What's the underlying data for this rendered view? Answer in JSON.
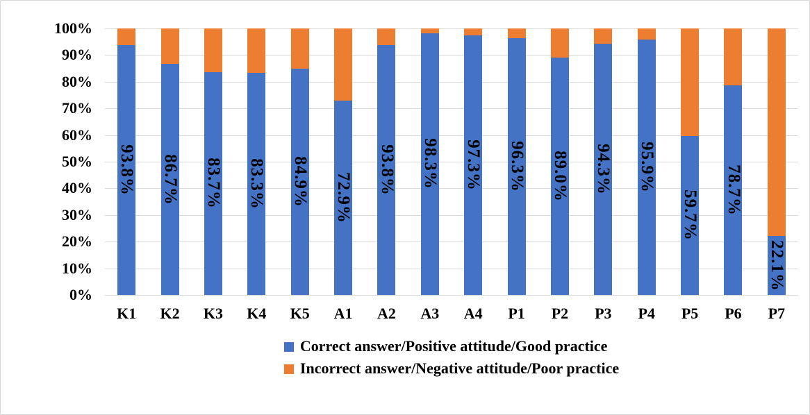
{
  "chart_data": {
    "type": "bar",
    "subtype": "100-percent-stacked-column",
    "categories": [
      "K1",
      "K2",
      "K3",
      "K4",
      "K5",
      "A1",
      "A2",
      "A3",
      "A4",
      "P1",
      "P2",
      "P3",
      "P4",
      "P5",
      "P6",
      "P7"
    ],
    "series": [
      {
        "name": "Correct answer/Positive attitude/Good practice",
        "color": "#4472C4",
        "values": [
          93.8,
          86.7,
          83.7,
          83.3,
          84.9,
          72.9,
          93.8,
          98.3,
          97.3,
          96.3,
          89.0,
          94.3,
          95.9,
          59.7,
          78.7,
          22.1
        ],
        "data_labels": [
          "93.8%",
          "86.7%",
          "83.7%",
          "83.3%",
          "84.9%",
          "72.9%",
          "93.8%",
          "98.3%",
          "97.3%",
          "96.3%",
          "89.0%",
          "94.3%",
          "95.9%",
          "59.7%",
          "78.7%",
          "22.1%"
        ]
      },
      {
        "name": "Incorrect answer/Negative attitude/Poor practice",
        "color": "#ED7D31",
        "values": [
          6.2,
          13.3,
          16.3,
          16.7,
          15.1,
          27.1,
          6.2,
          1.7,
          2.7,
          3.7,
          11.0,
          5.7,
          4.1,
          40.3,
          21.3,
          77.9
        ],
        "data_labels": []
      }
    ],
    "title": "",
    "xlabel": "",
    "ylabel": "",
    "y_axis": {
      "min": 0,
      "max": 100,
      "step": 10,
      "tick_labels": [
        "0%",
        "10%",
        "20%",
        "30%",
        "40%",
        "50%",
        "60%",
        "70%",
        "80%",
        "90%",
        "100%"
      ]
    },
    "grid": true,
    "gridline_color": "#d9d9d9",
    "data_label_rotation_deg": 90,
    "legend_position": "bottom"
  },
  "legend": {
    "items": [
      {
        "label": "Correct answer/Positive attitude/Good practice",
        "color": "#4472C4"
      },
      {
        "label": "Incorrect answer/Negative attitude/Poor practice",
        "color": "#ED7D31"
      }
    ]
  }
}
